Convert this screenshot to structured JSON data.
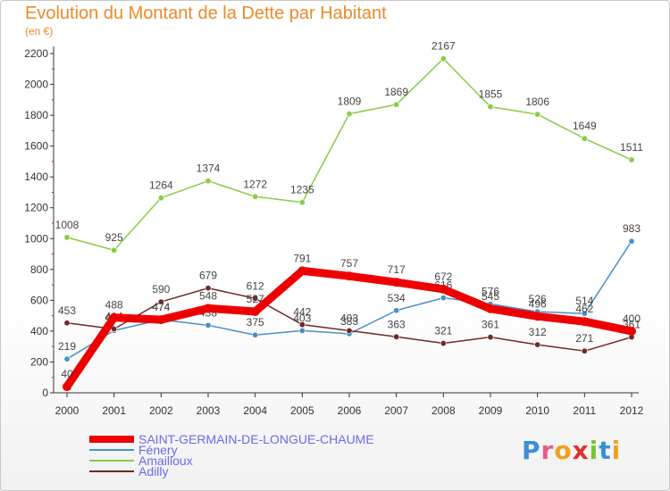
{
  "title": "Evolution du Montant de la Dette par Habitant",
  "subtitle": "(en €)",
  "logo": {
    "letters": [
      "P",
      "r",
      "o",
      "x",
      "i",
      "t",
      "i"
    ],
    "colors": [
      "#3b8fd8",
      "#e55e8a",
      "#f0a020",
      "#e03030",
      "#7cc23a",
      "#3b8fd8",
      "#f0a020"
    ]
  },
  "chart_data": {
    "type": "line",
    "x": [
      "2000",
      "2001",
      "2002",
      "2003",
      "2004",
      "2005",
      "2006",
      "2007",
      "2008",
      "2009",
      "2010",
      "2011",
      "2012"
    ],
    "ylim": [
      0,
      2200
    ],
    "yticks": [
      0,
      200,
      400,
      600,
      800,
      1000,
      1200,
      1400,
      1600,
      1800,
      2000,
      2200
    ],
    "grid": false,
    "legend_position": "bottom-left",
    "series": [
      {
        "name": "Amailloux",
        "color": "#88cc44",
        "values": [
          1008,
          925,
          1264,
          1374,
          1272,
          1235,
          1809,
          1869,
          2167,
          1855,
          1806,
          1649,
          1511
        ]
      },
      {
        "name": "Fénery",
        "color": "#4a90c8",
        "values": [
          219,
          404,
          474,
          438,
          375,
          403,
          383,
          534,
          616,
          576,
          526,
          514,
          983
        ]
      },
      {
        "name": "Adilly",
        "color": "#702828",
        "values": [
          453,
          414,
          590,
          679,
          612,
          442,
          403,
          363,
          321,
          361,
          312,
          271,
          361
        ]
      },
      {
        "name": "SAINT-GERMAIN-DE-LONGUE-CHAUME",
        "color": "#ee0000",
        "values": [
          40,
          488,
          474,
          548,
          527,
          791,
          757,
          717,
          672,
          545,
          496,
          462,
          400
        ]
      }
    ]
  },
  "legend": [
    {
      "name": "SAINT-GERMAIN-DE-LONGUE-CHAUME",
      "color": "#ee0000",
      "thick": true
    },
    {
      "name": "Fénery",
      "color": "#4a90c8",
      "thick": false
    },
    {
      "name": "Amailloux",
      "color": "#88cc44",
      "thick": false
    },
    {
      "name": "Adilly",
      "color": "#702828",
      "thick": false
    }
  ]
}
